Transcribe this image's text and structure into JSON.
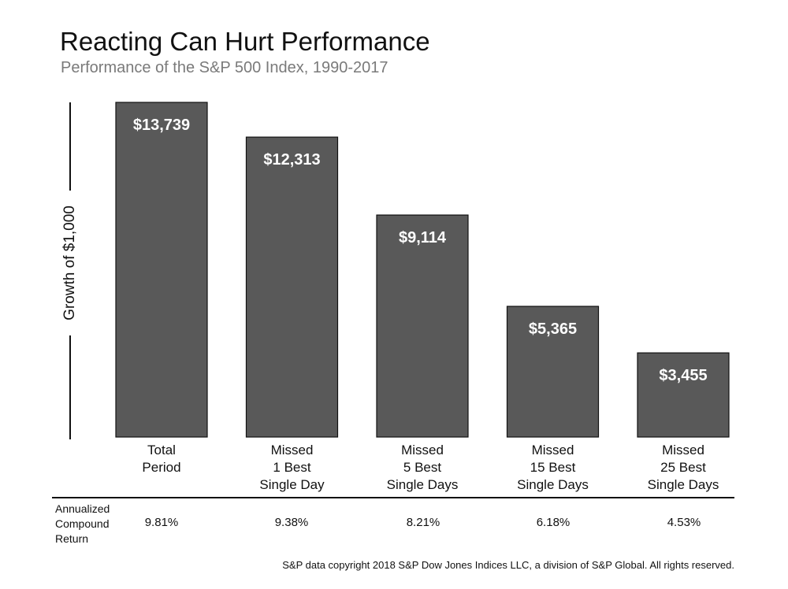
{
  "header": {
    "title": "Reacting Can Hurt Performance",
    "subtitle": "Performance of the S&P 500 Index, 1990-2017"
  },
  "chart_data": {
    "type": "bar",
    "title": "Reacting Can Hurt Performance",
    "subtitle": "Performance of the S&P 500 Index, 1990-2017",
    "ylabel": "Growth of $1,000",
    "xlabel": "",
    "categories": [
      [
        "Total",
        "Period"
      ],
      [
        "Missed",
        "1 Best",
        "Single Day"
      ],
      [
        "Missed",
        "5 Best",
        "Single Days"
      ],
      [
        "Missed",
        "15 Best",
        "Single Days"
      ],
      [
        "Missed",
        "25 Best",
        "Single Days"
      ]
    ],
    "values": [
      13739,
      12313,
      9114,
      5365,
      3455
    ],
    "value_labels": [
      "$13,739",
      "$12,313",
      "$9,114",
      "$5,365",
      "$3,455"
    ],
    "ylim": [
      0,
      13739
    ],
    "grid": false,
    "bar_color": "#595959"
  },
  "annualized": {
    "label": [
      "Annualized",
      "Compound",
      "Return"
    ],
    "values": [
      "9.81%",
      "9.38%",
      "8.21%",
      "6.18%",
      "4.53%"
    ]
  },
  "footer": "S&P data copyright 2018 S&P Dow Jones Indices LLC, a division of S&P Global. All rights reserved."
}
